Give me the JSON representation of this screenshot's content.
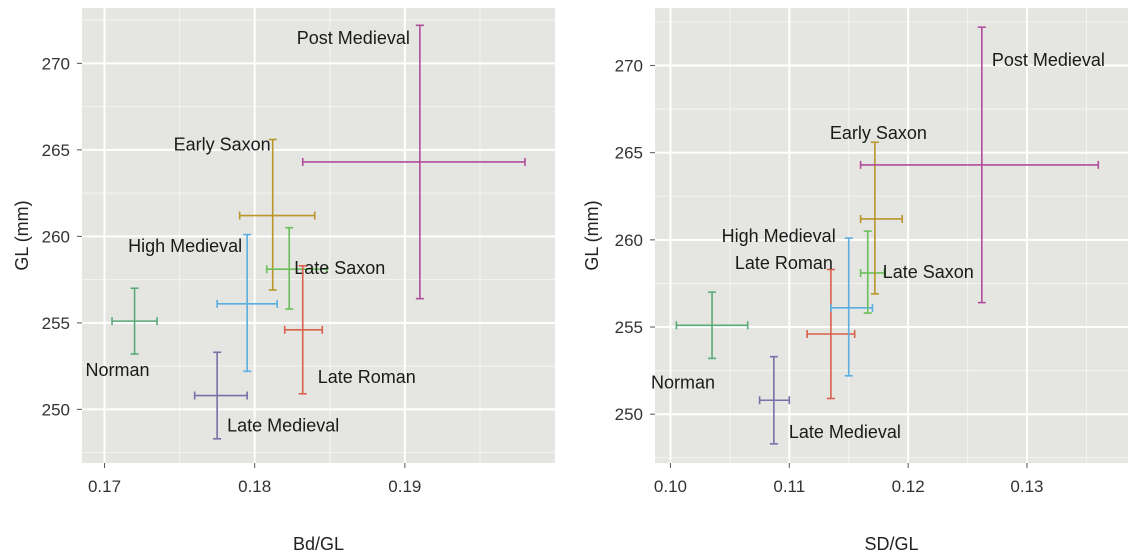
{
  "chart_data": [
    {
      "type": "scatter",
      "xlabel": "Bd/GL",
      "ylabel": "GL (mm)",
      "xlim": [
        0.1685,
        0.2
      ],
      "ylim": [
        246.9,
        273.2
      ],
      "xticks": [
        0.17,
        0.18,
        0.19
      ],
      "xtick_labels": [
        "0.17",
        "0.18",
        "0.19"
      ],
      "yticks": [
        250,
        255,
        260,
        265,
        270
      ],
      "ytick_labels": [
        "250",
        "255",
        "260",
        "265",
        "270"
      ],
      "grid": true,
      "series": [
        {
          "name": "Norman",
          "color": "#5aaa78",
          "x": 0.172,
          "y": 255.1,
          "xmin": 0.1705,
          "xmax": 0.1735,
          "ymin": 253.2,
          "ymax": 257.0,
          "label_anchor": "end",
          "label_dx": 15,
          "label_dy": 55
        },
        {
          "name": "Late Medieval",
          "color": "#7a6fa8",
          "x": 0.1775,
          "y": 250.8,
          "xmin": 0.176,
          "xmax": 0.1795,
          "ymin": 248.3,
          "ymax": 253.3,
          "label_anchor": "start",
          "label_dx": 10,
          "label_dy": 36
        },
        {
          "name": "High Medieval",
          "color": "#5aaee0",
          "x": 0.1795,
          "y": 256.1,
          "xmin": 0.1775,
          "xmax": 0.1815,
          "ymin": 252.2,
          "ymax": 260.1,
          "label_anchor": "end",
          "label_dx": -5,
          "label_dy": -52
        },
        {
          "name": "Early Saxon",
          "color": "#b8962a",
          "x": 0.1812,
          "y": 261.2,
          "xmin": 0.179,
          "xmax": 0.184,
          "ymin": 256.9,
          "ymax": 265.6,
          "label_anchor": "end",
          "label_dx": -2,
          "label_dy": -65
        },
        {
          "name": "Late Saxon",
          "color": "#6bbf5a",
          "x": 0.1823,
          "y": 258.1,
          "xmin": 0.1808,
          "xmax": 0.1848,
          "ymin": 255.8,
          "ymax": 260.5,
          "label_anchor": "start",
          "label_dx": 5,
          "label_dy": 5
        },
        {
          "name": "Late Roman",
          "color": "#d9604a",
          "x": 0.1832,
          "y": 254.6,
          "xmin": 0.182,
          "xmax": 0.1845,
          "ymin": 250.9,
          "ymax": 258.3,
          "label_anchor": "start",
          "label_dx": 15,
          "label_dy": 53
        },
        {
          "name": "Post Medieval",
          "color": "#b04d9a",
          "x": 0.191,
          "y": 264.3,
          "xmin": 0.1832,
          "xmax": 0.198,
          "ymin": 256.4,
          "ymax": 272.2,
          "label_anchor": "end",
          "label_dx": -10,
          "label_dy": -118
        }
      ]
    },
    {
      "type": "scatter",
      "xlabel": "SD/GL",
      "ylabel": "GL (mm)",
      "xlim": [
        0.0987,
        0.1385
      ],
      "ylim": [
        247.2,
        273.3
      ],
      "xticks": [
        0.1,
        0.11,
        0.12,
        0.13
      ],
      "xtick_labels": [
        "0.10",
        "0.11",
        "0.12",
        "0.13"
      ],
      "yticks": [
        250,
        255,
        260,
        265,
        270
      ],
      "ytick_labels": [
        "250",
        "255",
        "260",
        "265",
        "270"
      ],
      "grid": true,
      "series": [
        {
          "name": "Norman",
          "color": "#5aaa78",
          "x": 0.1035,
          "y": 255.1,
          "xmin": 0.1005,
          "xmax": 0.1065,
          "ymin": 253.2,
          "ymax": 257.0,
          "label_anchor": "end",
          "label_dx": 3,
          "label_dy": 63
        },
        {
          "name": "Late Medieval",
          "color": "#7a6fa8",
          "x": 0.1087,
          "y": 250.8,
          "xmin": 0.1075,
          "xmax": 0.11,
          "ymin": 248.3,
          "ymax": 253.3,
          "label_anchor": "start",
          "label_dx": 15,
          "label_dy": 38
        },
        {
          "name": "Late Roman",
          "color": "#d9604a",
          "x": 0.1135,
          "y": 254.6,
          "xmin": 0.1115,
          "xmax": 0.1155,
          "ymin": 250.9,
          "ymax": 258.3,
          "label_anchor": "end",
          "label_dx": 2,
          "label_dy": -65
        },
        {
          "name": "High Medieval",
          "color": "#5aaee0",
          "x": 0.115,
          "y": 256.1,
          "xmin": 0.1135,
          "xmax": 0.117,
          "ymin": 252.2,
          "ymax": 260.1,
          "label_anchor": "end",
          "label_dx": -13,
          "label_dy": -66
        },
        {
          "name": "Late Saxon",
          "color": "#6bbf5a",
          "x": 0.1166,
          "y": 258.1,
          "xmin": 0.116,
          "xmax": 0.118,
          "ymin": 255.8,
          "ymax": 260.5,
          "label_anchor": "start",
          "label_dx": 15,
          "label_dy": 5
        },
        {
          "name": "Early Saxon",
          "color": "#b8962a",
          "x": 0.1172,
          "y": 261.2,
          "xmin": 0.116,
          "xmax": 0.1195,
          "ymin": 256.9,
          "ymax": 265.6,
          "label_anchor": "start",
          "label_dx": -45,
          "label_dy": -80
        },
        {
          "name": "Post Medieval",
          "color": "#b04d9a",
          "x": 0.1262,
          "y": 264.3,
          "xmin": 0.116,
          "xmax": 0.136,
          "ymin": 256.4,
          "ymax": 272.2,
          "label_anchor": "start",
          "label_dx": 10,
          "label_dy": -99
        }
      ]
    }
  ]
}
